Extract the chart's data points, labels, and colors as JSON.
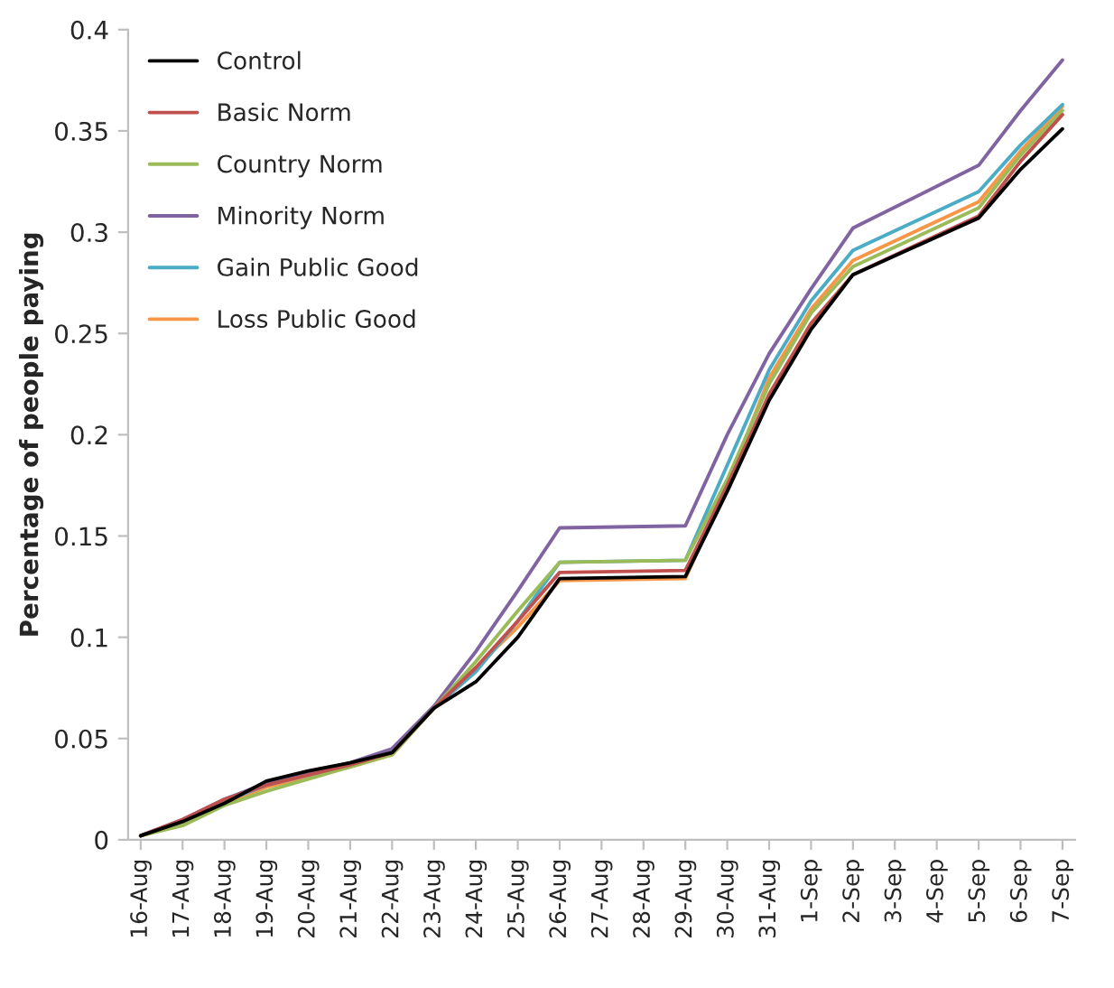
{
  "chart_data": {
    "type": "line",
    "ylabel": "Percentage of people paying",
    "categories": [
      "16-Aug",
      "17-Aug",
      "18-Aug",
      "19-Aug",
      "20-Aug",
      "21-Aug",
      "22-Aug",
      "23-Aug",
      "24-Aug",
      "25-Aug",
      "26-Aug",
      "27-Aug",
      "28-Aug",
      "29-Aug",
      "30-Aug",
      "31-Aug",
      "1-Sep",
      "2-Sep",
      "3-Sep",
      "4-Sep",
      "5-Sep",
      "6-Sep",
      "7-Sep"
    ],
    "series": [
      {
        "name": "Control",
        "color": "#000000",
        "values": [
          0.002,
          0.009,
          0.018,
          0.029,
          0.034,
          0.038,
          0.043,
          0.065,
          0.078,
          0.1,
          0.129,
          null,
          null,
          0.13,
          0.172,
          0.217,
          0.252,
          0.279,
          null,
          null,
          0.307,
          0.331,
          0.351
        ]
      },
      {
        "name": "Basic Norm",
        "color": "#c0504d",
        "values": [
          0.002,
          0.01,
          0.02,
          0.027,
          0.032,
          0.037,
          0.043,
          0.065,
          0.085,
          0.108,
          0.132,
          null,
          null,
          0.133,
          0.175,
          0.22,
          0.255,
          0.279,
          null,
          null,
          0.308,
          0.335,
          0.358
        ]
      },
      {
        "name": "Country Norm",
        "color": "#9bbb59",
        "values": [
          0.002,
          0.007,
          0.017,
          0.024,
          0.03,
          0.036,
          0.042,
          0.065,
          0.088,
          0.113,
          0.137,
          null,
          null,
          0.138,
          0.178,
          0.225,
          0.26,
          0.283,
          null,
          null,
          0.312,
          0.338,
          0.36
        ]
      },
      {
        "name": "Minority Norm",
        "color": "#8064a2",
        "values": [
          0.002,
          0.01,
          0.02,
          0.028,
          0.033,
          0.038,
          0.045,
          0.066,
          0.093,
          0.123,
          0.154,
          null,
          null,
          0.155,
          0.2,
          0.24,
          0.272,
          0.302,
          null,
          null,
          0.333,
          0.36,
          0.385
        ]
      },
      {
        "name": "Gain Public Good",
        "color": "#4bacc6",
        "values": [
          0.002,
          0.009,
          0.019,
          0.027,
          0.032,
          0.037,
          0.044,
          0.065,
          0.083,
          0.108,
          0.137,
          null,
          null,
          0.138,
          0.185,
          0.232,
          0.266,
          0.291,
          null,
          null,
          0.32,
          0.343,
          0.363
        ]
      },
      {
        "name": "Loss Public Good",
        "color": "#f79646",
        "values": [
          0.002,
          0.008,
          0.018,
          0.026,
          0.031,
          0.036,
          0.042,
          0.065,
          0.085,
          0.105,
          0.128,
          null,
          null,
          0.129,
          0.175,
          0.228,
          0.262,
          0.286,
          null,
          null,
          0.315,
          0.34,
          0.362
        ]
      }
    ],
    "ylim": [
      0,
      0.4
    ],
    "yticks": [
      0,
      0.05,
      0.1,
      0.15,
      0.2,
      0.25,
      0.3,
      0.35,
      0.4
    ],
    "grid": false,
    "legend": "top left",
    "marker": "none",
    "line_style": "solid"
  }
}
